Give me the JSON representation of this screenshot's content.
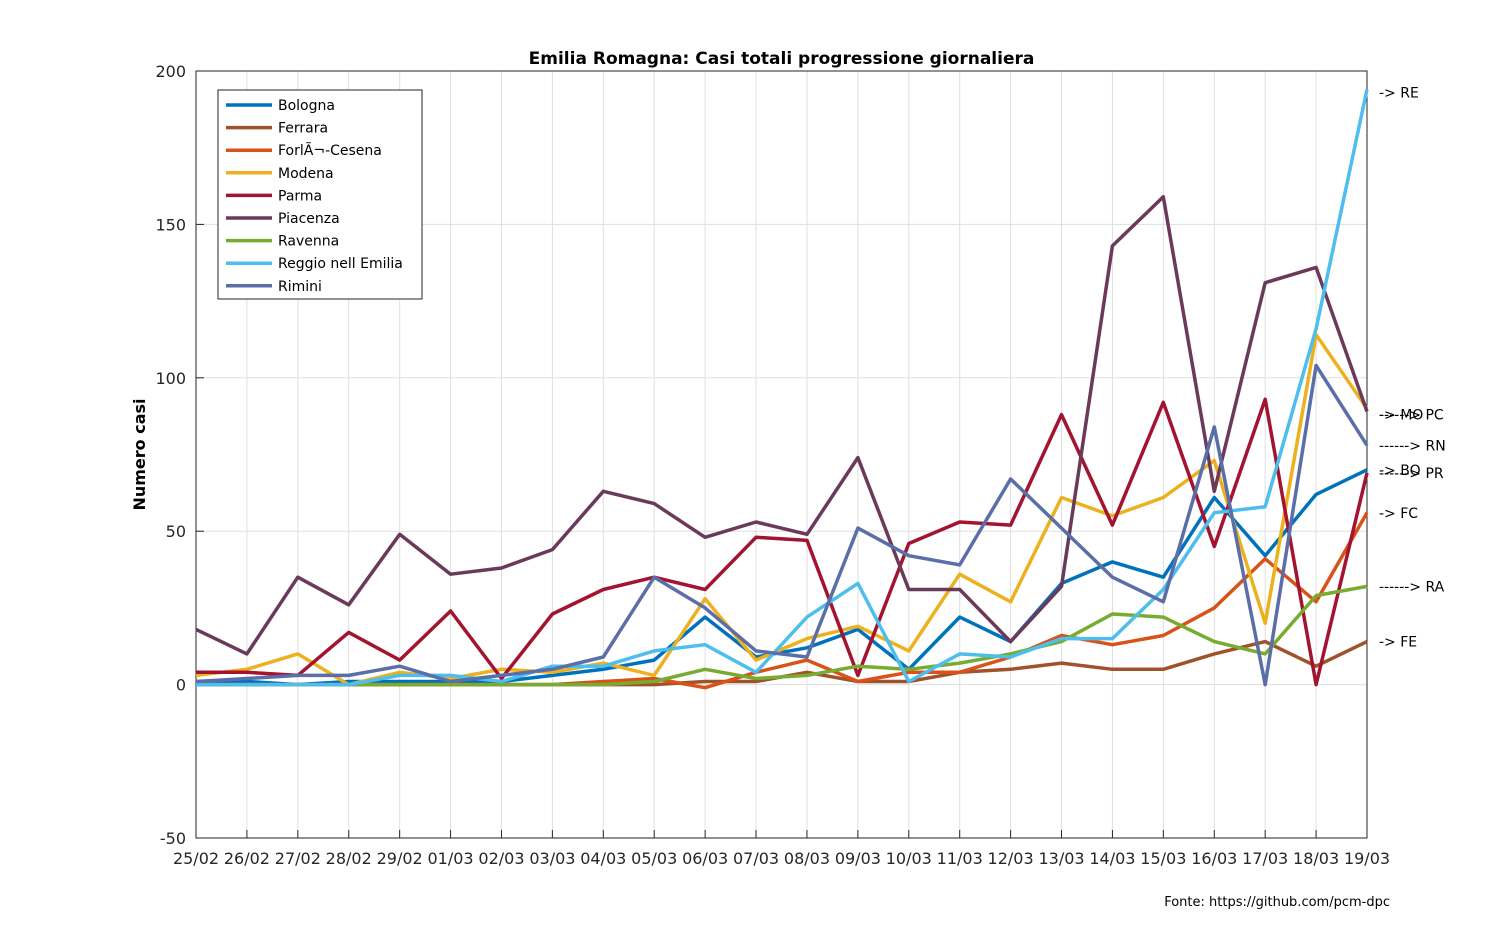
{
  "chart_data": {
    "type": "line",
    "title": "Emilia Romagna: Casi totali progressione giornaliera",
    "ylabel": "Numero casi",
    "xlabel": "",
    "ylim": [
      -50,
      200
    ],
    "yticks": [
      -50,
      0,
      50,
      100,
      150,
      200
    ],
    "grid": true,
    "legend_position": "top-left",
    "categories": [
      "25/02",
      "26/02",
      "27/02",
      "28/02",
      "29/02",
      "01/03",
      "02/03",
      "03/03",
      "04/03",
      "05/03",
      "06/03",
      "07/03",
      "08/03",
      "09/03",
      "10/03",
      "11/03",
      "12/03",
      "13/03",
      "14/03",
      "15/03",
      "16/03",
      "17/03",
      "18/03",
      "19/03"
    ],
    "series": [
      {
        "name": "Bologna",
        "color": "#0072bd",
        "values": [
          1,
          1,
          0,
          1,
          1,
          1,
          1,
          3,
          5,
          8,
          22,
          9,
          12,
          18,
          5,
          22,
          14,
          33,
          40,
          35,
          61,
          42,
          62,
          70
        ]
      },
      {
        "name": "Ferrara",
        "color": "#a0522d",
        "values": [
          0,
          0,
          0,
          0,
          0,
          0,
          0,
          0,
          0,
          0,
          1,
          1,
          4,
          1,
          1,
          4,
          5,
          7,
          5,
          5,
          10,
          14,
          6,
          14
        ]
      },
      {
        "name": "ForlÃ¬-Cesena",
        "color": "#d95319",
        "values": [
          0,
          0,
          0,
          0,
          0,
          0,
          0,
          0,
          1,
          2,
          -1,
          4,
          8,
          1,
          4,
          4,
          9,
          16,
          13,
          16,
          25,
          41,
          27,
          56
        ]
      },
      {
        "name": "Modena",
        "color": "#edb120",
        "values": [
          3,
          5,
          10,
          0,
          4,
          2,
          5,
          4,
          7,
          3,
          28,
          8,
          15,
          19,
          11,
          36,
          27,
          61,
          55,
          61,
          73,
          20,
          114,
          90
        ]
      },
      {
        "name": "Parma",
        "color": "#a2142f",
        "values": [
          4,
          4,
          3,
          17,
          8,
          24,
          2,
          23,
          31,
          35,
          31,
          48,
          47,
          3,
          46,
          53,
          52,
          88,
          52,
          92,
          45,
          93,
          0,
          69
        ]
      },
      {
        "name": "Piacenza",
        "color": "#6b3a5a",
        "values": [
          18,
          10,
          35,
          26,
          49,
          36,
          38,
          44,
          63,
          59,
          48,
          53,
          49,
          74,
          31,
          31,
          14,
          32,
          143,
          159,
          63,
          131,
          136,
          89
        ]
      },
      {
        "name": "Ravenna",
        "color": "#77ac30",
        "values": [
          0,
          0,
          0,
          0,
          0,
          0,
          0,
          0,
          0,
          1,
          5,
          2,
          3,
          6,
          5,
          7,
          10,
          14,
          23,
          22,
          14,
          10,
          29,
          32
        ]
      },
      {
        "name": "Reggio nell Emilia",
        "color": "#4dbeee",
        "values": [
          0,
          0,
          0,
          0,
          3,
          3,
          1,
          6,
          6,
          11,
          13,
          4,
          22,
          33,
          1,
          10,
          9,
          15,
          15,
          31,
          56,
          58,
          116,
          194
        ]
      },
      {
        "name": "Rimini",
        "color": "#5a6fa8",
        "values": [
          1,
          2,
          3,
          3,
          6,
          1,
          3,
          5,
          9,
          35,
          25,
          11,
          9,
          51,
          42,
          39,
          67,
          51,
          35,
          27,
          84,
          0,
          104,
          78
        ]
      }
    ],
    "end_labels": [
      {
        "text": "-> RE",
        "value": 193
      },
      {
        "text": "------> PC",
        "value": 88
      },
      {
        "text": "-> MO",
        "value": 88
      },
      {
        "text": "------> RN",
        "value": 78
      },
      {
        "text": "------> PR",
        "value": 69
      },
      {
        "text": "-> BO",
        "value": 70
      },
      {
        "text": "-> FC",
        "value": 56
      },
      {
        "text": "------> RA",
        "value": 32
      },
      {
        "text": "-> FE",
        "value": 14
      }
    ]
  },
  "source": "Fonte: https://github.com/pcm-dpc"
}
